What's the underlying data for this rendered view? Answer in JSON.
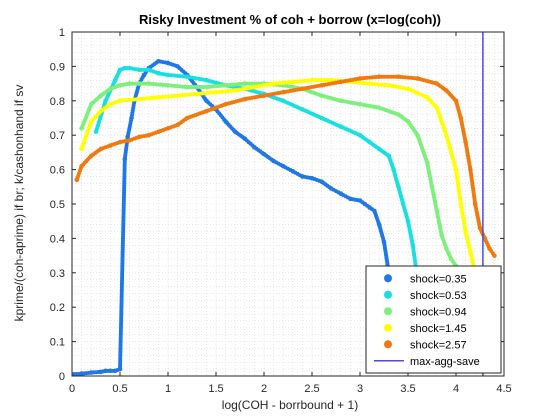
{
  "chart_data": {
    "type": "scatter",
    "title": "Risky Investment % of coh + borrow (x=log(coh))",
    "xlabel": "log(COH - borrbound + 1)",
    "ylabel": "kprime/(coh-aprime) if br; k/cashonhand if sv",
    "xlim": [
      0,
      4.5
    ],
    "ylim": [
      0,
      1
    ],
    "xticks": [
      "0",
      "0.5",
      "1",
      "1.5",
      "2",
      "2.5",
      "3",
      "3.5",
      "4",
      "4.5"
    ],
    "yticks": [
      "0",
      "0.1",
      "0.2",
      "0.3",
      "0.4",
      "0.5",
      "0.6",
      "0.7",
      "0.8",
      "0.9",
      "1"
    ],
    "grid": "minor-dotted",
    "legend_position": "bottom-right",
    "series": [
      {
        "name": "shock=0.35",
        "color": "#1f77e8",
        "x": [
          0.02,
          0.1,
          0.2,
          0.3,
          0.35,
          0.4,
          0.45,
          0.5,
          0.55,
          0.58,
          0.62,
          0.65,
          0.7,
          0.75,
          0.8,
          0.9,
          1.0,
          1.1,
          1.2,
          1.3,
          1.4,
          1.5,
          1.6,
          1.7,
          1.8,
          1.9,
          2.0,
          2.1,
          2.2,
          2.3,
          2.4,
          2.5,
          2.6,
          2.7,
          2.8,
          2.9,
          3.0,
          3.05,
          3.1,
          3.15,
          3.2,
          3.25,
          3.3,
          3.32,
          3.35,
          3.4
        ],
        "y": [
          0.005,
          0.007,
          0.01,
          0.012,
          0.015,
          0.015,
          0.015,
          0.02,
          0.63,
          0.695,
          0.75,
          0.8,
          0.85,
          0.875,
          0.895,
          0.915,
          0.91,
          0.9,
          0.875,
          0.84,
          0.8,
          0.775,
          0.74,
          0.71,
          0.69,
          0.665,
          0.645,
          0.625,
          0.61,
          0.595,
          0.58,
          0.575,
          0.565,
          0.545,
          0.53,
          0.515,
          0.51,
          0.5,
          0.49,
          0.48,
          0.44,
          0.39,
          0.3,
          0.2,
          0.1,
          0.04
        ]
      },
      {
        "name": "shock=0.53",
        "color": "#17e0e0",
        "x": [
          0.25,
          0.35,
          0.45,
          0.5,
          0.55,
          0.6,
          0.7,
          0.8,
          0.9,
          1.0,
          1.2,
          1.4,
          1.6,
          1.8,
          2.0,
          2.2,
          2.4,
          2.6,
          2.8,
          3.0,
          3.1,
          3.2,
          3.3,
          3.35,
          3.4,
          3.45,
          3.5,
          3.55,
          3.6,
          3.65
        ],
        "y": [
          0.71,
          0.8,
          0.86,
          0.89,
          0.895,
          0.895,
          0.89,
          0.89,
          0.88,
          0.875,
          0.87,
          0.86,
          0.845,
          0.835,
          0.82,
          0.8,
          0.775,
          0.75,
          0.725,
          0.7,
          0.68,
          0.66,
          0.64,
          0.6,
          0.55,
          0.5,
          0.45,
          0.38,
          0.28,
          0.16
        ]
      },
      {
        "name": "shock=0.94",
        "color": "#7cf07a",
        "x": [
          0.1,
          0.2,
          0.3,
          0.4,
          0.5,
          0.6,
          0.7,
          0.8,
          1.0,
          1.2,
          1.4,
          1.6,
          1.8,
          2.0,
          2.2,
          2.4,
          2.6,
          2.8,
          3.0,
          3.2,
          3.4,
          3.5,
          3.6,
          3.7,
          3.75,
          3.8,
          3.85,
          3.9,
          3.95,
          4.0,
          4.05
        ],
        "y": [
          0.72,
          0.79,
          0.815,
          0.835,
          0.845,
          0.85,
          0.85,
          0.85,
          0.845,
          0.84,
          0.84,
          0.845,
          0.85,
          0.85,
          0.845,
          0.835,
          0.815,
          0.8,
          0.79,
          0.78,
          0.76,
          0.74,
          0.7,
          0.62,
          0.55,
          0.48,
          0.41,
          0.37,
          0.34,
          0.32,
          0.3
        ]
      },
      {
        "name": "shock=1.45",
        "color": "#ffff00",
        "x": [
          0.1,
          0.2,
          0.3,
          0.4,
          0.5,
          0.7,
          0.9,
          1.1,
          1.3,
          1.5,
          1.7,
          1.9,
          2.1,
          2.3,
          2.5,
          2.7,
          2.9,
          3.1,
          3.3,
          3.5,
          3.7,
          3.8,
          3.9,
          4.0,
          4.05,
          4.1,
          4.15,
          4.2
        ],
        "y": [
          0.66,
          0.74,
          0.77,
          0.79,
          0.8,
          0.805,
          0.81,
          0.815,
          0.82,
          0.825,
          0.83,
          0.84,
          0.85,
          0.855,
          0.86,
          0.86,
          0.855,
          0.85,
          0.845,
          0.835,
          0.81,
          0.78,
          0.7,
          0.6,
          0.5,
          0.42,
          0.36,
          0.3
        ]
      },
      {
        "name": "shock=2.57",
        "color": "#f07a10",
        "x": [
          0.05,
          0.1,
          0.2,
          0.3,
          0.4,
          0.5,
          0.6,
          0.7,
          0.8,
          0.9,
          1.0,
          1.1,
          1.2,
          1.4,
          1.6,
          1.8,
          2.0,
          2.2,
          2.4,
          2.6,
          2.8,
          3.0,
          3.2,
          3.4,
          3.6,
          3.8,
          3.9,
          4.0,
          4.05,
          4.1,
          4.15,
          4.2,
          4.25,
          4.3,
          4.35,
          4.4
        ],
        "y": [
          0.57,
          0.61,
          0.64,
          0.66,
          0.67,
          0.68,
          0.685,
          0.695,
          0.7,
          0.71,
          0.72,
          0.73,
          0.75,
          0.77,
          0.79,
          0.805,
          0.815,
          0.825,
          0.835,
          0.845,
          0.855,
          0.865,
          0.87,
          0.87,
          0.865,
          0.85,
          0.83,
          0.8,
          0.75,
          0.68,
          0.6,
          0.5,
          0.43,
          0.4,
          0.37,
          0.35
        ]
      }
    ],
    "vlines": [
      {
        "name": "max-agg-save",
        "x": 4.28,
        "color": "#4a4ae8"
      }
    ]
  }
}
